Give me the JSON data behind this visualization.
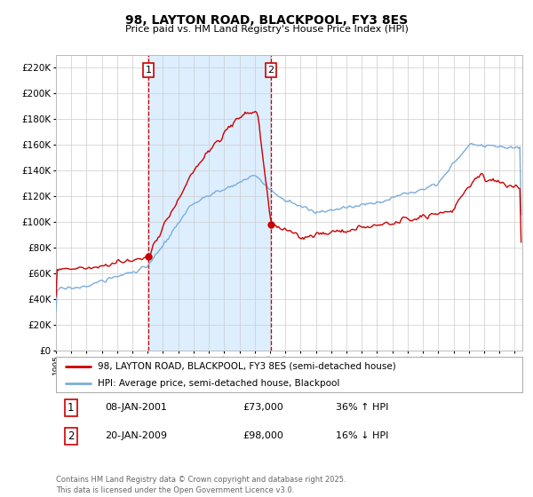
{
  "title": "98, LAYTON ROAD, BLACKPOOL, FY3 8ES",
  "subtitle": "Price paid vs. HM Land Registry's House Price Index (HPI)",
  "legend_property": "98, LAYTON ROAD, BLACKPOOL, FY3 8ES (semi-detached house)",
  "legend_hpi": "HPI: Average price, semi-detached house, Blackpool",
  "point1_date": "08-JAN-2001",
  "point1_price": "£73,000",
  "point1_hpi": "36% ↑ HPI",
  "point2_date": "20-JAN-2009",
  "point2_price": "£98,000",
  "point2_hpi": "16% ↓ HPI",
  "copyright": "Contains HM Land Registry data © Crown copyright and database right 2025.\nThis data is licensed under the Open Government Licence v3.0.",
  "property_color": "#cc0000",
  "hpi_color": "#7aaddb",
  "background_color": "#ffffff",
  "shading_color": "#ddeeff",
  "vline_color": "#cc0000",
  "point1_year": 2001.05,
  "point2_year": 2009.05,
  "ylim": [
    0,
    230000
  ],
  "yticks": [
    0,
    20000,
    40000,
    60000,
    80000,
    100000,
    120000,
    140000,
    160000,
    180000,
    200000,
    220000
  ],
  "xlim_start": 1995.0,
  "xlim_end": 2025.5,
  "point1_value": 73000,
  "point2_value": 98000
}
